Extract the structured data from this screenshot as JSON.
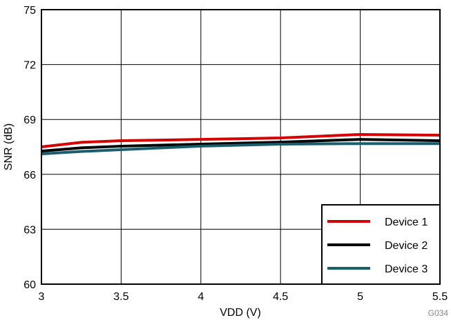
{
  "chart_data": {
    "type": "line",
    "xlabel": "VDD (V)",
    "ylabel": "SNR (dB)",
    "xlim": [
      3,
      5.5
    ],
    "ylim": [
      60,
      75
    ],
    "xticks": [
      "3",
      "3.5",
      "4",
      "4.5",
      "5",
      "5.5"
    ],
    "yticks": [
      "60",
      "63",
      "66",
      "69",
      "72",
      "75"
    ],
    "grid": true,
    "legend_placement": "bottom-right",
    "annotation": "G034",
    "x": [
      3,
      3.25,
      3.5,
      4,
      4.5,
      5,
      5.5
    ],
    "series": [
      {
        "name": "Device 1",
        "color": "#d40000",
        "values": [
          67.5,
          67.75,
          67.84,
          67.91,
          67.99,
          68.18,
          68.14
        ]
      },
      {
        "name": "Device 2",
        "color": "#000000",
        "values": [
          67.27,
          67.45,
          67.54,
          67.65,
          67.76,
          67.91,
          67.84
        ]
      },
      {
        "name": "Device 3",
        "color": "#1a5e6e",
        "values": [
          67.12,
          67.25,
          67.35,
          67.54,
          67.65,
          67.68,
          67.68
        ]
      }
    ]
  }
}
